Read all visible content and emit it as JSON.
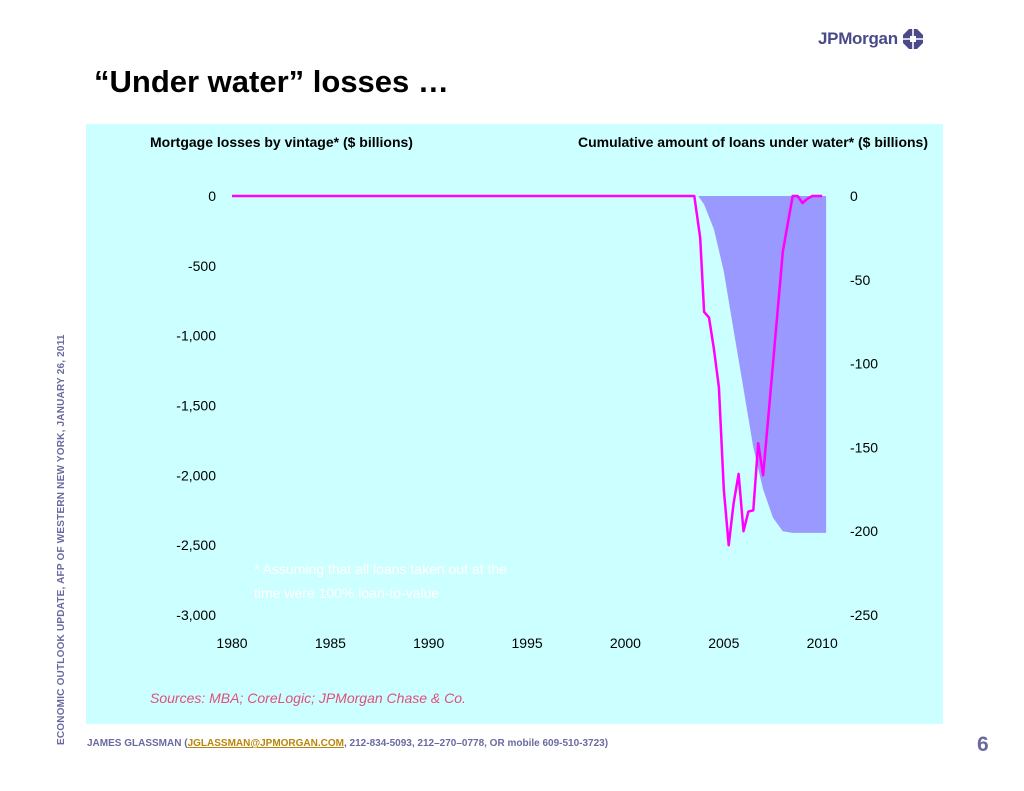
{
  "logo": {
    "text": "JPMorgan"
  },
  "slide": {
    "title": "“Under water” losses …",
    "side_text": "ECONOMIC OUTLOOK UPDATE, AFP OF WESTERN NEW YORK, JANUARY 26, 2011",
    "footer": {
      "prefix": "JAMES GLASSMAN (",
      "email": "JGLASSMAN@JPMORGAN.COM",
      "suffix": ", 212-834-5093, 212–270–0778, OR mobile 609-510-3723)"
    },
    "page_number": "6"
  },
  "colors": {
    "panel_bg": "#ccffff",
    "losses_line": "#ff00ff",
    "under_water_area": "#9999ff",
    "source_text": "#e0507a",
    "footnote_text": "#ffffff"
  },
  "chart_data": {
    "type": "line",
    "left_axis_title": "Mortgage losses by vintage* ($ billions)",
    "right_axis_title": "Cumulative amount of loans under water* ($ billions)",
    "xlim": [
      1980,
      2010.5
    ],
    "x_ticks": [
      1980,
      1985,
      1990,
      1995,
      2000,
      2005,
      2010
    ],
    "x_tick_labels": [
      "1980",
      "1985",
      "1990",
      "1995",
      "2000",
      "2005",
      "2010"
    ],
    "y_left": {
      "ylim": [
        -3000,
        0
      ],
      "ticks": [
        0,
        -500,
        -1000,
        -1500,
        -2000,
        -2500,
        -3000
      ],
      "tick_labels": [
        "0",
        "-500",
        "-1,000",
        "-1,500",
        "-2,000",
        "-2,500",
        "-3,000"
      ]
    },
    "y_right": {
      "ylim": [
        -250,
        0
      ],
      "ticks": [
        0,
        -50,
        -100,
        -150,
        -200,
        -250
      ],
      "tick_labels": [
        "0",
        "-50",
        "-100",
        "-150",
        "-200",
        "-250"
      ]
    },
    "series": [
      {
        "axis": "right",
        "style": "area",
        "x": [
          2003.7,
          2004.0,
          2004.5,
          2005.0,
          2005.5,
          2006.0,
          2006.5,
          2007.0,
          2007.5,
          2008.0,
          2008.5,
          2009.0,
          2009.5,
          2010.2
        ],
        "y": [
          0,
          -5,
          -20,
          -45,
          -80,
          -115,
          -150,
          -175,
          -192,
          -200,
          -201,
          -201,
          -201,
          -201
        ]
      },
      {
        "axis": "left",
        "style": "line",
        "x": [
          1980,
          1990,
          2000,
          2003.5,
          2003.8,
          2004.0,
          2004.25,
          2004.5,
          2004.75,
          2005.0,
          2005.25,
          2005.5,
          2005.75,
          2006.0,
          2006.25,
          2006.5,
          2006.75,
          2007.0,
          2007.25,
          2007.5,
          2007.75,
          2008.0,
          2008.25,
          2008.5,
          2008.75,
          2009.0,
          2009.25,
          2009.5,
          2009.75,
          2010.0
        ],
        "y": [
          0,
          0,
          0,
          0,
          -300,
          -830,
          -870,
          -1100,
          -1370,
          -2100,
          -2500,
          -2200,
          -1990,
          -2400,
          -2260,
          -2250,
          -1770,
          -2000,
          -1600,
          -1200,
          -800,
          -400,
          -200,
          0,
          0,
          -50,
          -20,
          0,
          0,
          0
        ]
      }
    ],
    "footnote": "* Assuming that all loans taken out at the time were 100% loan-to-value",
    "footnote_lines": [
      "* Assuming that all loans taken out at the",
      "time were 100% loan-to-value"
    ],
    "source": "Sources: MBA; CoreLogic; JPMorgan Chase & Co."
  }
}
